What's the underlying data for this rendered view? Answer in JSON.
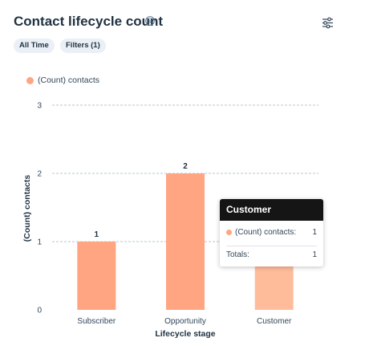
{
  "header": {
    "title": "Contact lifecycle count",
    "info_icon": "info-icon",
    "settings_icon": "sliders-icon"
  },
  "filters": [
    {
      "label": "All Time"
    },
    {
      "label": "Filters (1)"
    }
  ],
  "colors": {
    "bar": "#ffa581",
    "bar_highlight": "#ffbc9b",
    "tooltip_header": "#151515"
  },
  "chart_data": {
    "type": "bar",
    "categories": [
      "Subscriber",
      "Opportunity",
      "Customer"
    ],
    "series": [
      {
        "name": "(Count) contacts",
        "values": [
          1,
          2,
          1
        ]
      }
    ],
    "data_labels": [
      "1",
      "2",
      ""
    ],
    "xlabel": "Lifecycle stage",
    "ylabel": "(Count) contacts",
    "ylim": [
      0,
      3
    ],
    "yticks": [
      0,
      1,
      2,
      3
    ],
    "grid": true,
    "legend_position": "top-left"
  },
  "tooltip": {
    "title": "Customer",
    "series_label": "(Count) contacts:",
    "series_value": "1",
    "total_label": "Totals:",
    "total_value": "1"
  }
}
